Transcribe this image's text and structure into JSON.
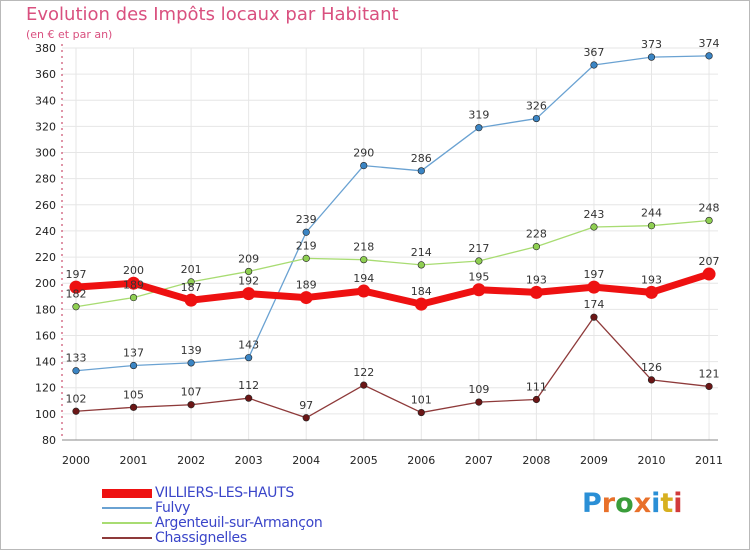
{
  "header": {
    "title": "Evolution des Impôts locaux par Habitant",
    "subtitle": "(en € et par an)"
  },
  "logo": {
    "letters": [
      "P",
      "r",
      "o",
      "x",
      "i",
      "t",
      "i"
    ],
    "colors": [
      "#2a8fd6",
      "#e8702a",
      "#3a9d3a",
      "#e8702a",
      "#2a8fd6",
      "#d7b020",
      "#d23a3a"
    ]
  },
  "chart_data": {
    "type": "line",
    "title": "Evolution des Impôts locaux par Habitant",
    "subtitle": "(en € et par an)",
    "xlabel": "",
    "ylabel": "",
    "categories": [
      "2000",
      "2001",
      "2002",
      "2003",
      "2004",
      "2005",
      "2006",
      "2007",
      "2008",
      "2009",
      "2010",
      "2011"
    ],
    "ylim": [
      80,
      380
    ],
    "yticks": [
      80,
      100,
      120,
      140,
      160,
      180,
      200,
      220,
      240,
      260,
      280,
      300,
      320,
      340,
      360,
      380
    ],
    "grid": true,
    "legend_position": "bottom-left",
    "series": [
      {
        "name": "Fulvy",
        "color": "#6aa2d2",
        "marker": "#3b85c4",
        "values": [
          133,
          137,
          139,
          143,
          239,
          290,
          286,
          319,
          326,
          367,
          373,
          374
        ],
        "labels": [
          "133",
          "137",
          "139",
          "143",
          "239",
          "290",
          "286",
          "319",
          "326",
          "367",
          "373",
          "374"
        ]
      },
      {
        "name": "Argenteuil-sur-Armançon",
        "color": "#a8dc72",
        "marker": "#8fcf52",
        "values": [
          182,
          189,
          201,
          209,
          219,
          218,
          214,
          217,
          228,
          243,
          244,
          248
        ],
        "labels": [
          "182",
          "189",
          "201",
          "209",
          "219",
          "218",
          "214",
          "217",
          "228",
          "243",
          "244",
          "248"
        ]
      },
      {
        "name": "Chassignelles",
        "color": "#8e3a3a",
        "marker": "#6b1616",
        "values": [
          102,
          105,
          107,
          112,
          97,
          122,
          101,
          109,
          111,
          174,
          126,
          121
        ],
        "labels": [
          "102",
          "105",
          "107",
          "112",
          "97",
          "122",
          "101",
          "109",
          "111",
          "174",
          "126",
          "121"
        ]
      },
      {
        "name": "VILLIERS-LES-HAUTS",
        "color": "#ee1111",
        "marker": "#ee1111",
        "values": [
          197,
          200,
          187,
          192,
          189,
          194,
          184,
          195,
          193,
          197,
          193,
          207
        ],
        "labels": [
          "197",
          "200",
          "187",
          "192",
          "189",
          "194",
          "184",
          "195",
          "193",
          "197",
          "193",
          "207"
        ]
      }
    ],
    "legend_order": [
      "VILLIERS-LES-HAUTS",
      "Fulvy",
      "Argenteuil-sur-Armançon",
      "Chassignelles"
    ]
  }
}
